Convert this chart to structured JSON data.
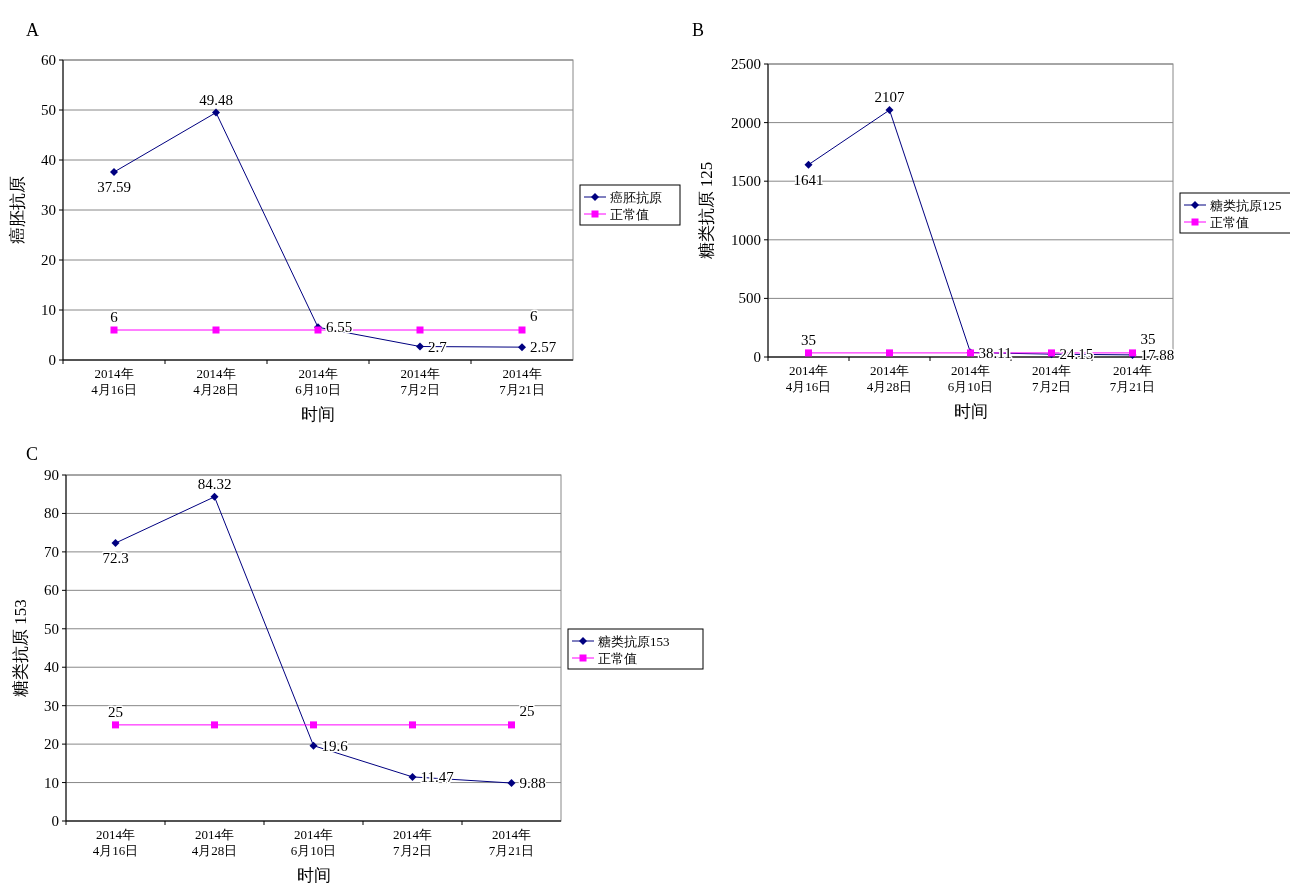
{
  "chart_data": [
    {
      "type": "line",
      "title": "A",
      "xlabel": "时间",
      "ylabel": "癌胚抗原",
      "categories": [
        "2014年\n4月16日",
        "2014年\n4月28日",
        "2014年\n6月10日",
        "2014年\n7月2日",
        "2014年\n7月21日"
      ],
      "ylim": [
        0,
        60
      ],
      "yticks": [
        0,
        10,
        20,
        30,
        40,
        50,
        60
      ],
      "grid": "y",
      "legend": "right",
      "series": [
        {
          "name": "癌胚抗原",
          "color": "#000080",
          "marker": "diamond",
          "values": [
            37.59,
            49.48,
            6.55,
            2.7,
            2.57
          ],
          "value_labels": [
            "37.59",
            "49.48",
            "6.55",
            "2.7",
            "2.57"
          ]
        },
        {
          "name": "正常值",
          "color": "#ff00ff",
          "marker": "square",
          "values": [
            6,
            6,
            6,
            6,
            6
          ],
          "value_labels": [
            "6",
            null,
            null,
            null,
            "6"
          ]
        }
      ]
    },
    {
      "type": "line",
      "title": "B",
      "xlabel": "时间",
      "ylabel": "糖类抗原 125",
      "categories": [
        "2014年\n4月16日",
        "2014年\n4月28日",
        "2014年\n6月10日",
        "2014年\n7月2日",
        "2014年\n7月21日"
      ],
      "ylim": [
        0,
        2500
      ],
      "yticks": [
        0,
        500,
        1000,
        1500,
        2000,
        2500
      ],
      "grid": "y",
      "legend": "right",
      "series": [
        {
          "name": "糖类抗原125",
          "color": "#000080",
          "marker": "diamond",
          "values": [
            1641,
            2107,
            38.11,
            24.15,
            17.88
          ],
          "value_labels": [
            "1641",
            "2107",
            "38.11",
            "24.15",
            "17.88"
          ]
        },
        {
          "name": "正常值",
          "color": "#ff00ff",
          "marker": "square",
          "values": [
            35,
            35,
            35,
            35,
            35
          ],
          "value_labels": [
            "35",
            null,
            null,
            null,
            "35"
          ]
        }
      ]
    },
    {
      "type": "line",
      "title": "C",
      "xlabel": "时间",
      "ylabel": "糖类抗原 153",
      "categories": [
        "2014年\n4月16日",
        "2014年\n4月28日",
        "2014年\n6月10日",
        "2014年\n7月2日",
        "2014年\n7月21日"
      ],
      "ylim": [
        0,
        90
      ],
      "yticks": [
        0,
        10,
        20,
        30,
        40,
        50,
        60,
        70,
        80,
        90
      ],
      "grid": "y",
      "legend": "right",
      "series": [
        {
          "name": "糖类抗原153",
          "color": "#000080",
          "marker": "diamond",
          "values": [
            72.3,
            84.32,
            19.6,
            11.47,
            9.88
          ],
          "value_labels": [
            "72.3",
            "84.32",
            "19.6",
            "11.47",
            "9.88"
          ]
        },
        {
          "name": "正常值",
          "color": "#ff00ff",
          "marker": "square",
          "values": [
            25,
            25,
            25,
            25,
            25
          ],
          "value_labels": [
            "25",
            null,
            null,
            null,
            "25"
          ]
        }
      ]
    }
  ]
}
